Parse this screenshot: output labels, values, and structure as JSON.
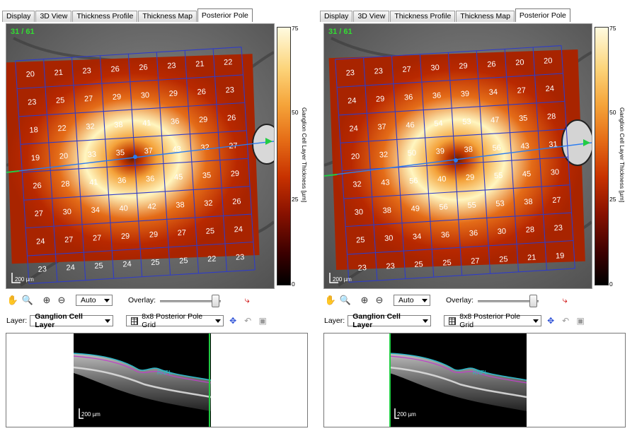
{
  "panels": [
    {
      "id": "left",
      "tabs": [
        "Display",
        "3D View",
        "Thickness Profile",
        "Thickness Map",
        "Posterior Pole"
      ],
      "active_tab": "Posterior Pole",
      "slice_counter": "31 / 61",
      "scale_bar": "200 µm",
      "colorbar": {
        "title": "Ganglion Cell Layer Thickness [µm]",
        "ticks": [
          "75",
          "50",
          "25",
          "0"
        ],
        "min": 0,
        "max": 75
      },
      "grid_values": [
        [
          "20",
          "21",
          "23",
          "26",
          "26",
          "23",
          "21",
          "22"
        ],
        [
          "23",
          "25",
          "27",
          "29",
          "30",
          "29",
          "26",
          "23"
        ],
        [
          "18",
          "22",
          "32",
          "38",
          "41",
          "36",
          "29",
          "26"
        ],
        [
          "19",
          "20",
          "33",
          "35",
          "37",
          "43",
          "32",
          "27"
        ],
        [
          "26",
          "28",
          "41",
          "36",
          "36",
          "45",
          "35",
          "29"
        ],
        [
          "27",
          "30",
          "34",
          "40",
          "42",
          "38",
          "32",
          "26"
        ],
        [
          "24",
          "27",
          "27",
          "29",
          "29",
          "27",
          "25",
          "24"
        ],
        [
          "23",
          "24",
          "25",
          "24",
          "25",
          "25",
          "22",
          "23"
        ]
      ],
      "toolbar": {
        "zoom_value": "Auto",
        "overlay_label": "Overlay:",
        "overlay_level": 0.85
      },
      "layer": {
        "label": "Layer:",
        "value": "Ganglion Cell Layer"
      },
      "grid_select": "8x8 Posterior Pole Grid",
      "bscan": {
        "scale_bar": "200 µm",
        "layer_tag": "RNFL"
      }
    },
    {
      "id": "right",
      "tabs": [
        "Display",
        "3D View",
        "Thickness Profile",
        "Thickness Map",
        "Posterior Pole"
      ],
      "active_tab": "Posterior Pole",
      "slice_counter": "31 / 61",
      "scale_bar": "200 µm",
      "colorbar": {
        "title": "Ganglion Cell Layer Thickness [µm]",
        "ticks": [
          "75",
          "50",
          "25",
          "0"
        ],
        "min": 0,
        "max": 75
      },
      "grid_values": [
        [
          "23",
          "23",
          "27",
          "30",
          "29",
          "26",
          "20",
          "20"
        ],
        [
          "24",
          "29",
          "36",
          "36",
          "39",
          "34",
          "27",
          "24"
        ],
        [
          "24",
          "37",
          "46",
          "54",
          "53",
          "47",
          "35",
          "28"
        ],
        [
          "20",
          "32",
          "50",
          "39",
          "38",
          "56",
          "43",
          "31"
        ],
        [
          "32",
          "43",
          "56",
          "40",
          "29",
          "55",
          "45",
          "30"
        ],
        [
          "30",
          "38",
          "49",
          "56",
          "55",
          "53",
          "38",
          "27"
        ],
        [
          "25",
          "30",
          "34",
          "36",
          "36",
          "30",
          "28",
          "23"
        ],
        [
          "23",
          "23",
          "25",
          "25",
          "27",
          "25",
          "21",
          "19"
        ]
      ],
      "toolbar": {
        "zoom_value": "Auto",
        "overlay_label": "Overlay:",
        "overlay_level": 0.85
      },
      "layer": {
        "label": "Layer:",
        "value": "Ganglion Cell Layer"
      },
      "grid_select": "8x8 Posterior Pole Grid",
      "bscan": {
        "scale_bar": "200 µm",
        "layer_tag": "RNFL"
      }
    }
  ],
  "icons": [
    "hand-icon",
    "magnifier-icon",
    "zoom-in-icon",
    "zoom-out-icon",
    "cursor-tool-icon",
    "grid-icon",
    "collapse-icon",
    "undo-icon",
    "save-icon"
  ],
  "colors": {
    "grid_line": "#2f3cc8",
    "counter_text": "#33dd33",
    "scan_line_blue": "#2a7cf0",
    "scan_line_green": "#22cc44",
    "thickness_high": "#fff6c0",
    "thickness_low": "#b82800"
  }
}
